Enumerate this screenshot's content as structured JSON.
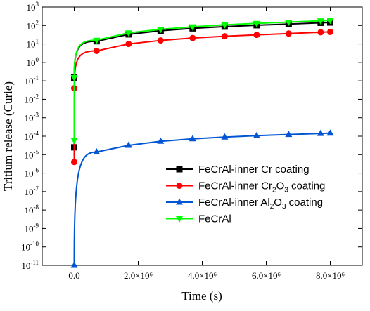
{
  "chart_data": {
    "type": "line",
    "xlabel": "Time (s)",
    "ylabel": "Tritium release (Curie)",
    "y_scale": "log",
    "xlim": [
      -1000000,
      9000000
    ],
    "ylim": [
      1e-11,
      1000
    ],
    "grid": false,
    "legend_placement": "bottom-right",
    "x_ticks": [
      {
        "value": 0,
        "label": "0.0"
      },
      {
        "value": 2000000,
        "label": "2.0×10⁶"
      },
      {
        "value": 4000000,
        "label": "4.0×10⁶"
      },
      {
        "value": 6000000,
        "label": "6.0×10⁶"
      },
      {
        "value": 8000000,
        "label": "8.0×10⁶"
      }
    ],
    "y_ticks": [
      {
        "value": 1e-11,
        "mant": "10",
        "exp": "-11"
      },
      {
        "value": 1e-10,
        "mant": "10",
        "exp": "-10"
      },
      {
        "value": 1e-09,
        "mant": "10",
        "exp": "-9"
      },
      {
        "value": 1e-08,
        "mant": "10",
        "exp": "-8"
      },
      {
        "value": 1e-07,
        "mant": "10",
        "exp": "-7"
      },
      {
        "value": 1e-06,
        "mant": "10",
        "exp": "-6"
      },
      {
        "value": 1e-05,
        "mant": "10",
        "exp": "-5"
      },
      {
        "value": 0.0001,
        "mant": "10",
        "exp": "-4"
      },
      {
        "value": 0.001,
        "mant": "10",
        "exp": "-3"
      },
      {
        "value": 0.01,
        "mant": "10",
        "exp": "-2"
      },
      {
        "value": 0.1,
        "mant": "10",
        "exp": "-1"
      },
      {
        "value": 1,
        "mant": "10",
        "exp": "0"
      },
      {
        "value": 10,
        "mant": "10",
        "exp": "1"
      },
      {
        "value": 100,
        "mant": "10",
        "exp": "2"
      },
      {
        "value": 1000,
        "mant": "10",
        "exp": "3"
      }
    ],
    "series": [
      {
        "name": "FeCrAl-inner Cr coating",
        "name_parts": [
          {
            "t": "FeCrAl-inner Cr coating",
            "sub": false
          }
        ],
        "color": "#000000",
        "marker": "square",
        "x": [
          0,
          0,
          700000,
          1700000,
          2700000,
          3700000,
          4700000,
          5700000,
          6700000,
          7700000,
          8000000
        ],
        "y": [
          2.5e-05,
          0.15,
          14,
          33,
          52,
          70,
          87,
          103,
          120,
          140,
          145
        ]
      },
      {
        "name": "FeCrAl-inner Cr2O3 coating",
        "name_parts": [
          {
            "t": "FeCrAl-inner Cr",
            "sub": false
          },
          {
            "t": "2",
            "sub": true
          },
          {
            "t": "O",
            "sub": false
          },
          {
            "t": "3",
            "sub": true
          },
          {
            "t": " coating",
            "sub": false
          }
        ],
        "color": "#ff0000",
        "marker": "circle",
        "x": [
          0,
          0,
          700000,
          1700000,
          2700000,
          3700000,
          4700000,
          5700000,
          6700000,
          7700000,
          8000000
        ],
        "y": [
          4e-06,
          0.04,
          4.2,
          10,
          15.5,
          21,
          26,
          31,
          36.5,
          43,
          45
        ]
      },
      {
        "name": "FeCrAl-inner Al2O3 coating",
        "name_parts": [
          {
            "t": "FeCrAl-inner Al",
            "sub": false
          },
          {
            "t": "2",
            "sub": true
          },
          {
            "t": "O",
            "sub": false
          },
          {
            "t": "3",
            "sub": true
          },
          {
            "t": " coating",
            "sub": false
          }
        ],
        "color": "#0055d4",
        "marker": "triangle-up",
        "x": [
          0,
          700000,
          1700000,
          2700000,
          3700000,
          4700000,
          5700000,
          6700000,
          7700000,
          8000000
        ],
        "y": [
          1e-11,
          1.4e-05,
          3.2e-05,
          5.3e-05,
          7.2e-05,
          9e-05,
          0.000107,
          0.000123,
          0.00014,
          0.000145
        ]
      },
      {
        "name": "FeCrAl",
        "name_parts": [
          {
            "t": "FeCrAl",
            "sub": false
          }
        ],
        "color": "#00ff00",
        "marker": "triangle-down",
        "x": [
          0,
          0,
          700000,
          1700000,
          2700000,
          3700000,
          4700000,
          5700000,
          6700000,
          7700000,
          8000000
        ],
        "y": [
          6e-05,
          0.15,
          16,
          40,
          62,
          85,
          108,
          130,
          152,
          180,
          190
        ]
      }
    ]
  }
}
